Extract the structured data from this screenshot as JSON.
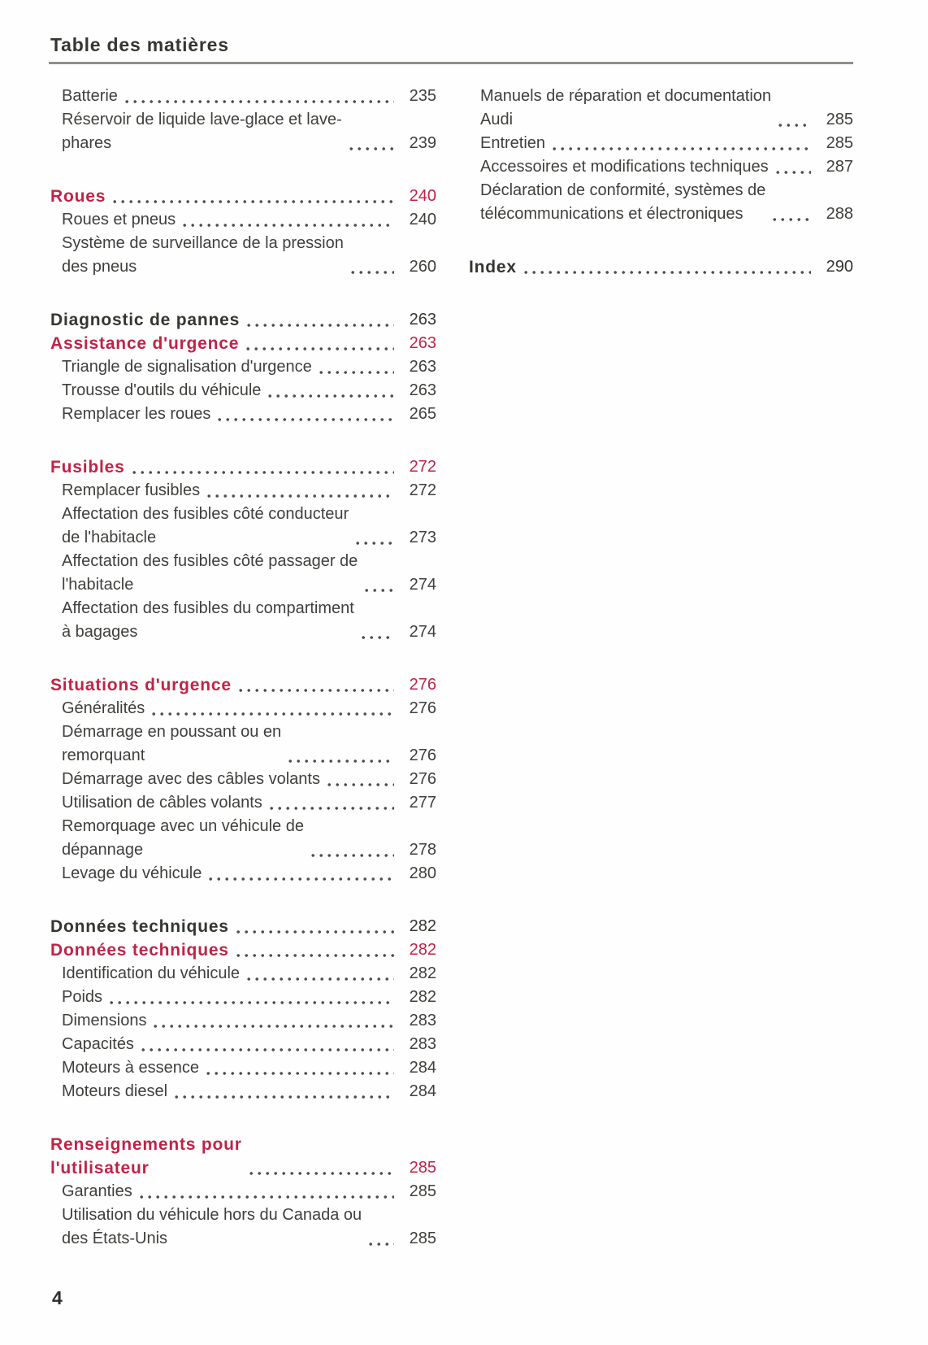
{
  "theme": {
    "accent_red": "#c02347",
    "body_text_color": "#3f3f3c",
    "heading_text_color": "#36362f",
    "rule_color": "#8f8f8a",
    "dot_leader_color": "#4d4d4a",
    "background": "#fefefe"
  },
  "header": {
    "title": "Table des matières"
  },
  "footer": {
    "page_number": "4"
  },
  "toc": {
    "columns": [
      {
        "name": "left",
        "sections": [
          {
            "entries": [
              {
                "label": "Batterie",
                "page": "235",
                "style": "normal"
              },
              {
                "label": "Réservoir de liquide lave-glace et lave-\nphares",
                "page": "239",
                "style": "normal"
              }
            ]
          },
          {
            "entries": [
              {
                "label": "Roues",
                "page": "240",
                "style": "red"
              },
              {
                "label": "Roues et pneus",
                "page": "240",
                "style": "normal"
              },
              {
                "label": "Système de surveillance de la pression\ndes pneus",
                "page": "260",
                "style": "normal"
              }
            ]
          },
          {
            "entries": [
              {
                "label": "Diagnostic de pannes",
                "page": "263",
                "style": "dark"
              },
              {
                "label": "Assistance d'urgence",
                "page": "263",
                "style": "red"
              },
              {
                "label": "Triangle de signalisation d'urgence",
                "page": "263",
                "style": "normal"
              },
              {
                "label": "Trousse d'outils du véhicule",
                "page": "263",
                "style": "normal"
              },
              {
                "label": "Remplacer les roues",
                "page": "265",
                "style": "normal"
              }
            ]
          },
          {
            "entries": [
              {
                "label": "Fusibles",
                "page": "272",
                "style": "red"
              },
              {
                "label": "Remplacer fusibles",
                "page": "272",
                "style": "normal"
              },
              {
                "label": "Affectation des fusibles côté conducteur\nde l'habitacle",
                "page": "273",
                "style": "normal"
              },
              {
                "label": "Affectation des fusibles côté passager de\nl'habitacle",
                "page": "274",
                "style": "normal"
              },
              {
                "label": "Affectation des fusibles du compartiment\nà bagages",
                "page": "274",
                "style": "normal"
              }
            ]
          },
          {
            "entries": [
              {
                "label": "Situations d'urgence",
                "page": "276",
                "style": "red"
              },
              {
                "label": "Généralités",
                "page": "276",
                "style": "normal"
              },
              {
                "label": "Démarrage en poussant ou en\nremorquant",
                "page": "276",
                "style": "normal"
              },
              {
                "label": "Démarrage avec des câbles volants",
                "page": "276",
                "style": "normal"
              },
              {
                "label": "Utilisation de câbles volants",
                "page": "277",
                "style": "normal"
              },
              {
                "label": "Remorquage avec un véhicule de\ndépannage",
                "page": "278",
                "style": "normal"
              },
              {
                "label": "Levage du véhicule",
                "page": "280",
                "style": "normal"
              }
            ]
          },
          {
            "entries": [
              {
                "label": "Données techniques",
                "page": "282",
                "style": "dark"
              },
              {
                "label": "Données techniques",
                "page": "282",
                "style": "red"
              },
              {
                "label": "Identification du véhicule",
                "page": "282",
                "style": "normal"
              },
              {
                "label": "Poids",
                "page": "282",
                "style": "normal"
              },
              {
                "label": "Dimensions",
                "page": "283",
                "style": "normal"
              },
              {
                "label": "Capacités",
                "page": "283",
                "style": "normal"
              },
              {
                "label": "Moteurs à essence",
                "page": "284",
                "style": "normal"
              },
              {
                "label": "Moteurs diesel",
                "page": "284",
                "style": "normal"
              }
            ]
          },
          {
            "entries": [
              {
                "label": "Renseignements pour\nl'utilisateur",
                "page": "285",
                "style": "red"
              },
              {
                "label": "Garanties",
                "page": "285",
                "style": "normal"
              },
              {
                "label": "Utilisation du véhicule hors du Canada ou\ndes États-Unis",
                "page": "285",
                "style": "normal"
              }
            ]
          }
        ]
      },
      {
        "name": "right",
        "sections": [
          {
            "entries": [
              {
                "label": "Manuels de réparation et documentation\nAudi",
                "page": "285",
                "style": "normal"
              },
              {
                "label": "Entretien",
                "page": "285",
                "style": "normal"
              },
              {
                "label": "Accessoires et modifications techniques",
                "page": "287",
                "style": "normal"
              },
              {
                "label": "Déclaration de conformité, systèmes de\ntélécommunications et électroniques",
                "page": "288",
                "style": "normal"
              }
            ]
          },
          {
            "entries": [
              {
                "label": "Index",
                "page": "290",
                "style": "dark"
              }
            ]
          }
        ]
      }
    ]
  }
}
